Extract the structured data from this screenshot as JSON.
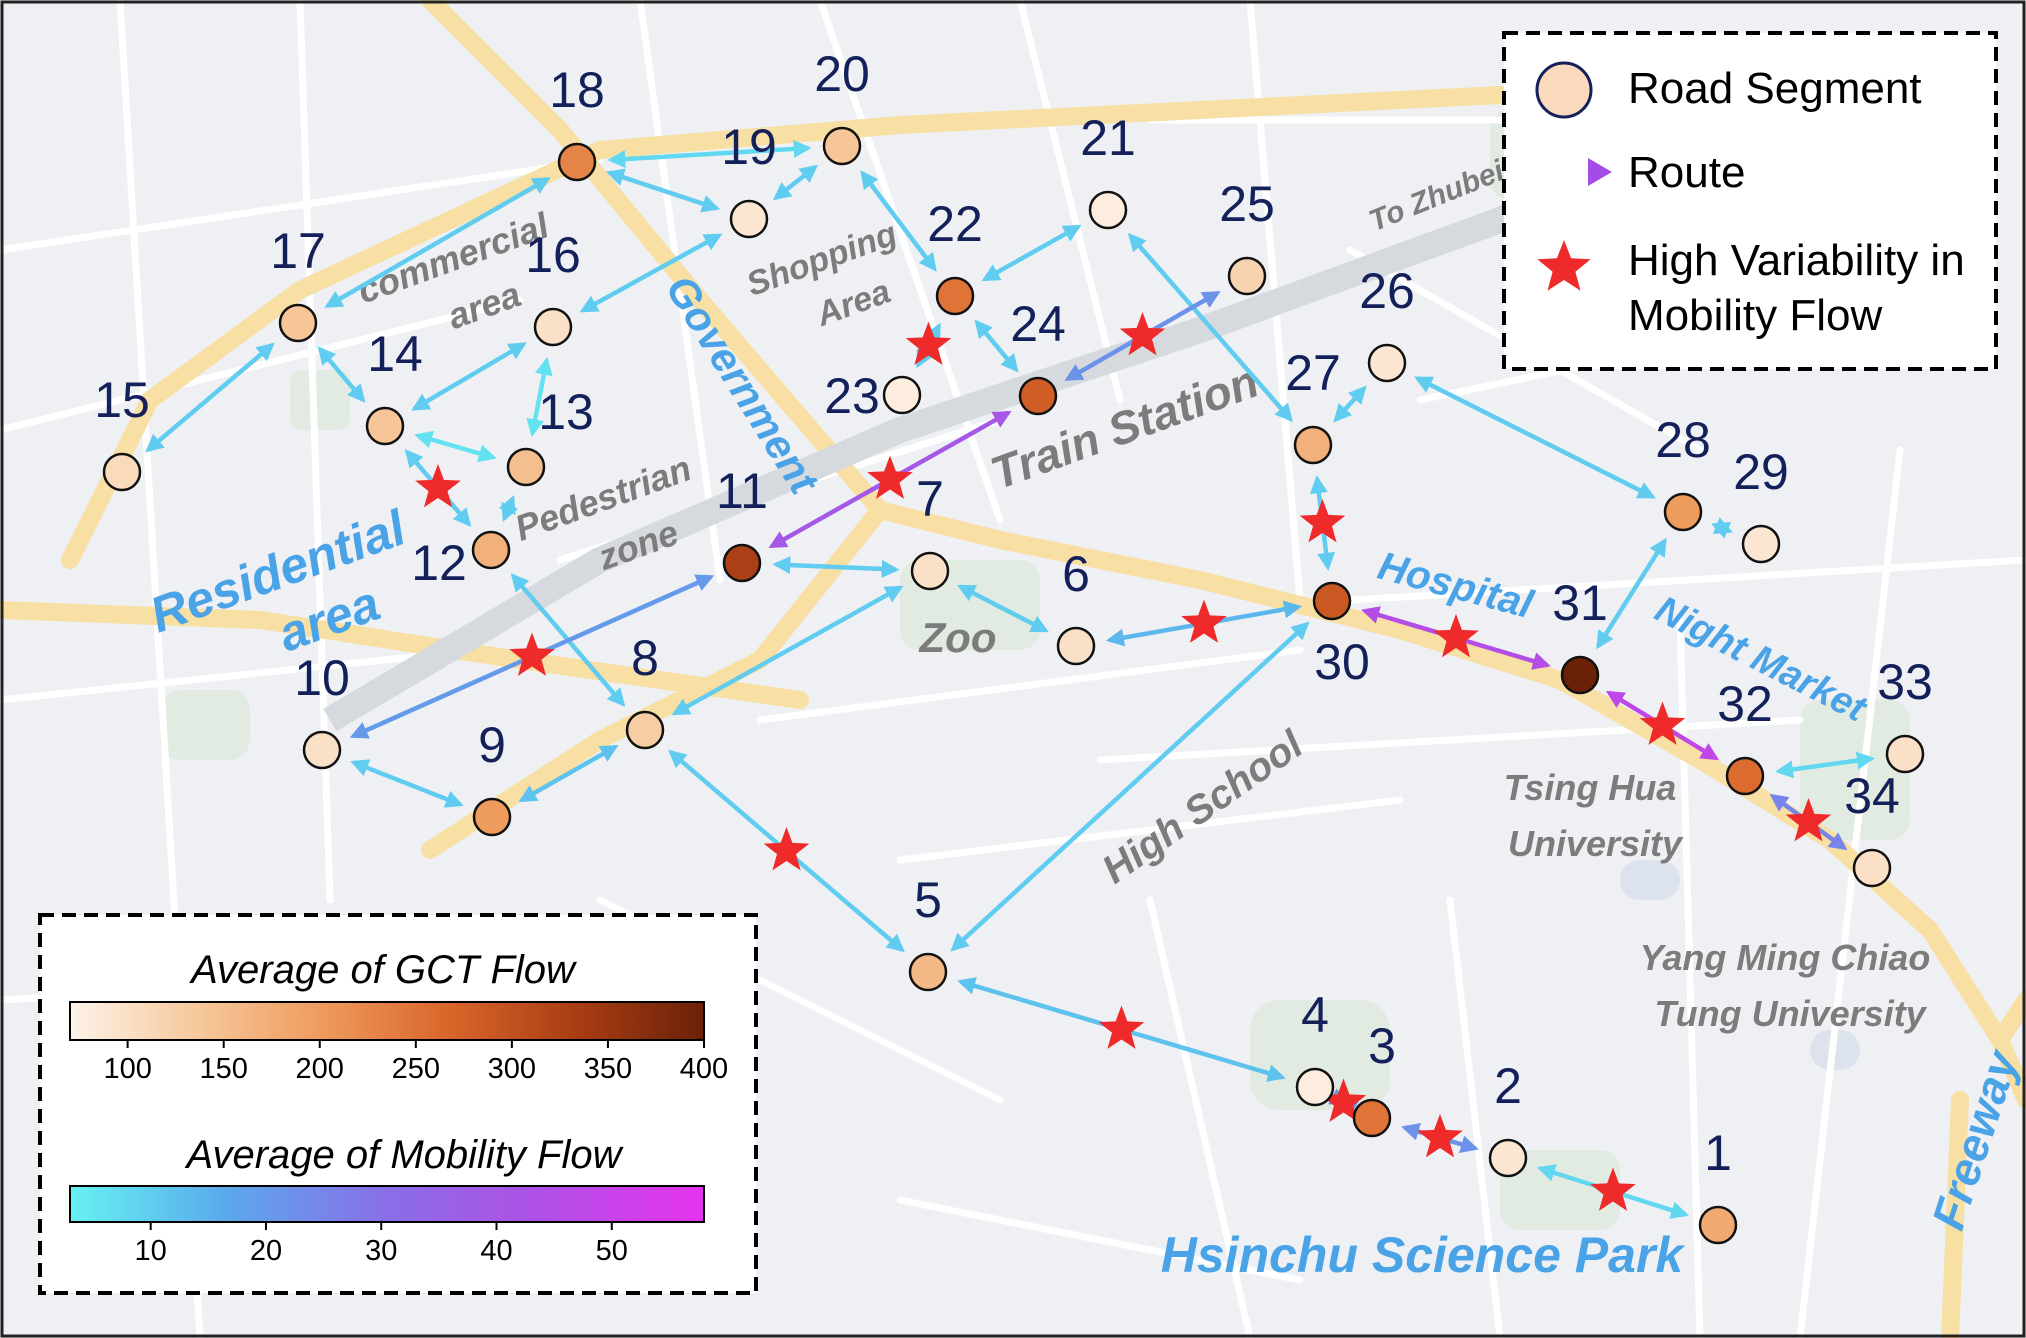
{
  "map": {
    "places": [
      {
        "id": "residential",
        "lines": [
          "Residential",
          "area"
        ],
        "style": "blue"
      },
      {
        "id": "commercial",
        "lines": [
          "commercial",
          "area"
        ],
        "style": "gray"
      },
      {
        "id": "government",
        "lines": [
          "Government"
        ],
        "style": "blue"
      },
      {
        "id": "shopping",
        "lines": [
          "Shopping",
          "Area"
        ],
        "style": "gray"
      },
      {
        "id": "pedestrian",
        "lines": [
          "Pedestrian",
          "zone"
        ],
        "style": "gray"
      },
      {
        "id": "train-station",
        "lines": [
          "Train Station"
        ],
        "style": "gray"
      },
      {
        "id": "to-zhubei",
        "lines": [
          "To Zhubei"
        ],
        "style": "gray"
      },
      {
        "id": "zoo",
        "lines": [
          "Zoo"
        ],
        "style": "gray"
      },
      {
        "id": "hospital",
        "lines": [
          "Hospital"
        ],
        "style": "blue"
      },
      {
        "id": "night-market",
        "lines": [
          "Night Market"
        ],
        "style": "blue"
      },
      {
        "id": "high-school",
        "lines": [
          "High School"
        ],
        "style": "gray"
      },
      {
        "id": "tsing-hua",
        "lines": [
          "Tsing Hua",
          "University"
        ],
        "style": "gray"
      },
      {
        "id": "yang-ming",
        "lines": [
          "Yang Ming Chiao",
          "Tung University"
        ],
        "style": "gray"
      },
      {
        "id": "science-park",
        "lines": [
          "Hsinchu Science Park"
        ],
        "style": "blue"
      },
      {
        "id": "freeway",
        "lines": [
          "Freeway"
        ],
        "style": "blue"
      }
    ],
    "nodes": [
      {
        "label": "1",
        "gct": 180
      },
      {
        "label": "2",
        "gct": 90
      },
      {
        "label": "3",
        "gct": 250
      },
      {
        "label": "4",
        "gct": 80
      },
      {
        "label": "5",
        "gct": 160
      },
      {
        "label": "6",
        "gct": 100
      },
      {
        "label": "7",
        "gct": 100
      },
      {
        "label": "8",
        "gct": 130
      },
      {
        "label": "9",
        "gct": 200
      },
      {
        "label": "10",
        "gct": 100
      },
      {
        "label": "11",
        "gct": 330
      },
      {
        "label": "12",
        "gct": 170
      },
      {
        "label": "13",
        "gct": 150
      },
      {
        "label": "14",
        "gct": 140
      },
      {
        "label": "15",
        "gct": 110
      },
      {
        "label": "16",
        "gct": 100
      },
      {
        "label": "17",
        "gct": 140
      },
      {
        "label": "18",
        "gct": 230
      },
      {
        "label": "19",
        "gct": 90
      },
      {
        "label": "20",
        "gct": 140
      },
      {
        "label": "21",
        "gct": 80
      },
      {
        "label": "22",
        "gct": 250
      },
      {
        "label": "23",
        "gct": 80
      },
      {
        "label": "24",
        "gct": 280
      },
      {
        "label": "25",
        "gct": 120
      },
      {
        "label": "26",
        "gct": 90
      },
      {
        "label": "27",
        "gct": 170
      },
      {
        "label": "28",
        "gct": 200
      },
      {
        "label": "29",
        "gct": 90
      },
      {
        "label": "30",
        "gct": 290
      },
      {
        "label": "31",
        "gct": 400
      },
      {
        "label": "32",
        "gct": 260
      },
      {
        "label": "33",
        "gct": 100
      },
      {
        "label": "34",
        "gct": 100
      }
    ],
    "routes": [
      {
        "from": "1",
        "to": "2",
        "flow": 8
      },
      {
        "from": "2",
        "to": "3",
        "flow": 22
      },
      {
        "from": "3",
        "to": "4",
        "flow": 20
      },
      {
        "from": "4",
        "to": "5",
        "flow": 12
      },
      {
        "from": "5",
        "to": "8",
        "flow": 10
      },
      {
        "from": "5",
        "to": "30",
        "flow": 10
      },
      {
        "from": "6",
        "to": "7",
        "flow": 10
      },
      {
        "from": "6",
        "to": "30",
        "flow": 14
      },
      {
        "from": "7",
        "to": "8",
        "flow": 10
      },
      {
        "from": "7",
        "to": "11",
        "flow": 10
      },
      {
        "from": "8",
        "to": "12",
        "flow": 10
      },
      {
        "from": "8",
        "to": "9",
        "flow": 12
      },
      {
        "from": "9",
        "to": "10",
        "flow": 10
      },
      {
        "from": "10",
        "to": "11",
        "flow": 20
      },
      {
        "from": "11",
        "to": "24",
        "flow": 40
      },
      {
        "from": "12",
        "to": "13",
        "flow": 10
      },
      {
        "from": "12",
        "to": "14",
        "flow": 10
      },
      {
        "from": "13",
        "to": "14",
        "flow": 6
      },
      {
        "from": "13",
        "to": "16",
        "flow": 6
      },
      {
        "from": "14",
        "to": "16",
        "flow": 10
      },
      {
        "from": "14",
        "to": "17",
        "flow": 10
      },
      {
        "from": "15",
        "to": "17",
        "flow": 10
      },
      {
        "from": "16",
        "to": "19",
        "flow": 10
      },
      {
        "from": "17",
        "to": "18",
        "flow": 10
      },
      {
        "from": "18",
        "to": "19",
        "flow": 10
      },
      {
        "from": "18",
        "to": "20",
        "flow": 8
      },
      {
        "from": "19",
        "to": "20",
        "flow": 10
      },
      {
        "from": "20",
        "to": "22",
        "flow": 10
      },
      {
        "from": "21",
        "to": "22",
        "flow": 10
      },
      {
        "from": "21",
        "to": "27",
        "flow": 10
      },
      {
        "from": "22",
        "to": "23",
        "flow": 10
      },
      {
        "from": "22",
        "to": "24",
        "flow": 10
      },
      {
        "from": "24",
        "to": "25",
        "flow": 22
      },
      {
        "from": "26",
        "to": "27",
        "flow": 10
      },
      {
        "from": "26",
        "to": "28",
        "flow": 10
      },
      {
        "from": "27",
        "to": "30",
        "flow": 10
      },
      {
        "from": "28",
        "to": "29",
        "flow": 10
      },
      {
        "from": "28",
        "to": "31",
        "flow": 10
      },
      {
        "from": "30",
        "to": "31",
        "flow": 45
      },
      {
        "from": "31",
        "to": "32",
        "flow": 48
      },
      {
        "from": "32",
        "to": "33",
        "flow": 8
      },
      {
        "from": "32",
        "to": "34",
        "flow": 25
      }
    ],
    "high_variability": [
      [
        "1-2"
      ],
      [
        "2-3"
      ],
      [
        "3-4"
      ],
      [
        "4-5"
      ],
      [
        "5-8"
      ],
      [
        "6-30"
      ],
      [
        "10-11"
      ],
      [
        "11-24"
      ],
      [
        "12-14"
      ],
      [
        "22-23"
      ],
      [
        "24-25"
      ],
      [
        "27-30"
      ],
      [
        "30-31"
      ],
      [
        "31-32"
      ],
      [
        "32-34"
      ]
    ]
  },
  "legend": {
    "road_segment": "Road Segment",
    "route": "Route",
    "high_variability_line1": "High Variability in",
    "high_variability_line2": "Mobility Flow"
  },
  "colorbars": {
    "gct": {
      "title": "Average of GCT Flow",
      "range": [
        70,
        400
      ],
      "ticks": [
        "100",
        "150",
        "200",
        "250",
        "300",
        "350",
        "400"
      ],
      "tick_values": [
        100,
        150,
        200,
        250,
        300,
        350,
        400
      ],
      "colors": [
        "#fdf3ea",
        "#f6c99c",
        "#ee9a5c",
        "#d9652a",
        "#a83d14",
        "#6b2108"
      ]
    },
    "mobility": {
      "title": "Average of Mobility Flow",
      "range": [
        3,
        58
      ],
      "ticks": [
        "10",
        "20",
        "30",
        "40",
        "50"
      ],
      "tick_values": [
        10,
        20,
        30,
        40,
        50
      ],
      "colors": [
        "#66f2f2",
        "#5aa8ec",
        "#8a6ee8",
        "#b14ee6",
        "#e634ee"
      ]
    }
  },
  "colors": {
    "star": "#ee2a2a",
    "node_stroke": "#111111",
    "place_blue": "#4aa3e6",
    "place_gray": "#7c7c7c",
    "node_label": "#14205a"
  }
}
